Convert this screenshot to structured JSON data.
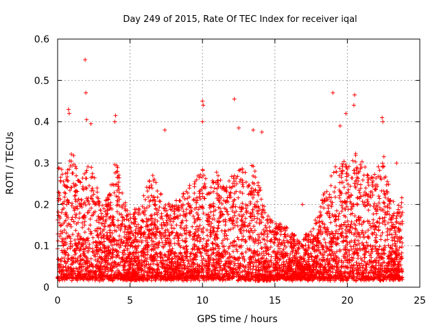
{
  "chart_data": {
    "type": "scatter",
    "title": "Day 249 of 2015, Rate Of TEC Index for receiver iqal",
    "xlabel": "GPS time / hours",
    "ylabel": "ROTI / TECUs",
    "xlim": [
      0,
      25
    ],
    "ylim": [
      0,
      0.6
    ],
    "xticks": [
      0,
      5,
      10,
      15,
      20,
      25
    ],
    "yticks": [
      0,
      0.1,
      0.2,
      0.3,
      0.4,
      0.5,
      0.6
    ],
    "xtick_labels": [
      "0",
      "5",
      "10",
      "15",
      "20",
      "25"
    ],
    "ytick_labels": [
      "0",
      "0.1",
      "0.2",
      "0.3",
      "0.4",
      "0.5",
      "0.6"
    ],
    "grid": true,
    "marker": "+",
    "marker_color": "#ff0000",
    "series": [
      {
        "name": "ROTI",
        "description": "dense per-satellite ROTI samples, 0 to 23.8 h",
        "envelope": {
          "hours": [
            0.0,
            0.5,
            1.0,
            1.5,
            2.0,
            2.5,
            3.0,
            3.5,
            4.0,
            4.5,
            5.0,
            5.5,
            6.0,
            6.5,
            7.0,
            7.5,
            8.0,
            8.5,
            9.0,
            9.5,
            10.0,
            10.5,
            11.0,
            11.5,
            12.0,
            12.5,
            13.0,
            13.5,
            14.0,
            14.5,
            15.0,
            15.5,
            16.0,
            16.5,
            17.0,
            17.5,
            18.0,
            18.5,
            19.0,
            19.5,
            20.0,
            20.5,
            21.0,
            21.5,
            22.0,
            22.5,
            23.0,
            23.5,
            23.8
          ],
          "typical_max": [
            0.3,
            0.28,
            0.33,
            0.26,
            0.3,
            0.3,
            0.2,
            0.22,
            0.32,
            0.22,
            0.18,
            0.2,
            0.22,
            0.28,
            0.24,
            0.22,
            0.2,
            0.22,
            0.24,
            0.26,
            0.3,
            0.25,
            0.28,
            0.24,
            0.27,
            0.3,
            0.28,
            0.3,
            0.24,
            0.18,
            0.16,
            0.16,
            0.14,
            0.12,
            0.12,
            0.14,
            0.18,
            0.25,
            0.28,
            0.3,
            0.3,
            0.33,
            0.3,
            0.28,
            0.28,
            0.32,
            0.22,
            0.2,
            0.22
          ],
          "floor": 0.02
        },
        "notable_points": [
          {
            "x": 0.75,
            "y": 0.43
          },
          {
            "x": 0.8,
            "y": 0.42
          },
          {
            "x": 1.9,
            "y": 0.55
          },
          {
            "x": 1.95,
            "y": 0.47
          },
          {
            "x": 2.3,
            "y": 0.395
          },
          {
            "x": 2.0,
            "y": 0.405
          },
          {
            "x": 4.0,
            "y": 0.415
          },
          {
            "x": 3.95,
            "y": 0.4
          },
          {
            "x": 7.4,
            "y": 0.38
          },
          {
            "x": 10.0,
            "y": 0.45
          },
          {
            "x": 10.05,
            "y": 0.44
          },
          {
            "x": 10.0,
            "y": 0.4
          },
          {
            "x": 12.2,
            "y": 0.455
          },
          {
            "x": 12.5,
            "y": 0.385
          },
          {
            "x": 13.5,
            "y": 0.38
          },
          {
            "x": 14.1,
            "y": 0.375
          },
          {
            "x": 16.9,
            "y": 0.2
          },
          {
            "x": 19.0,
            "y": 0.47
          },
          {
            "x": 19.5,
            "y": 0.39
          },
          {
            "x": 19.9,
            "y": 0.42
          },
          {
            "x": 20.5,
            "y": 0.465
          },
          {
            "x": 20.45,
            "y": 0.44
          },
          {
            "x": 22.4,
            "y": 0.41
          },
          {
            "x": 22.45,
            "y": 0.4
          },
          {
            "x": 23.4,
            "y": 0.3
          }
        ]
      }
    ]
  }
}
